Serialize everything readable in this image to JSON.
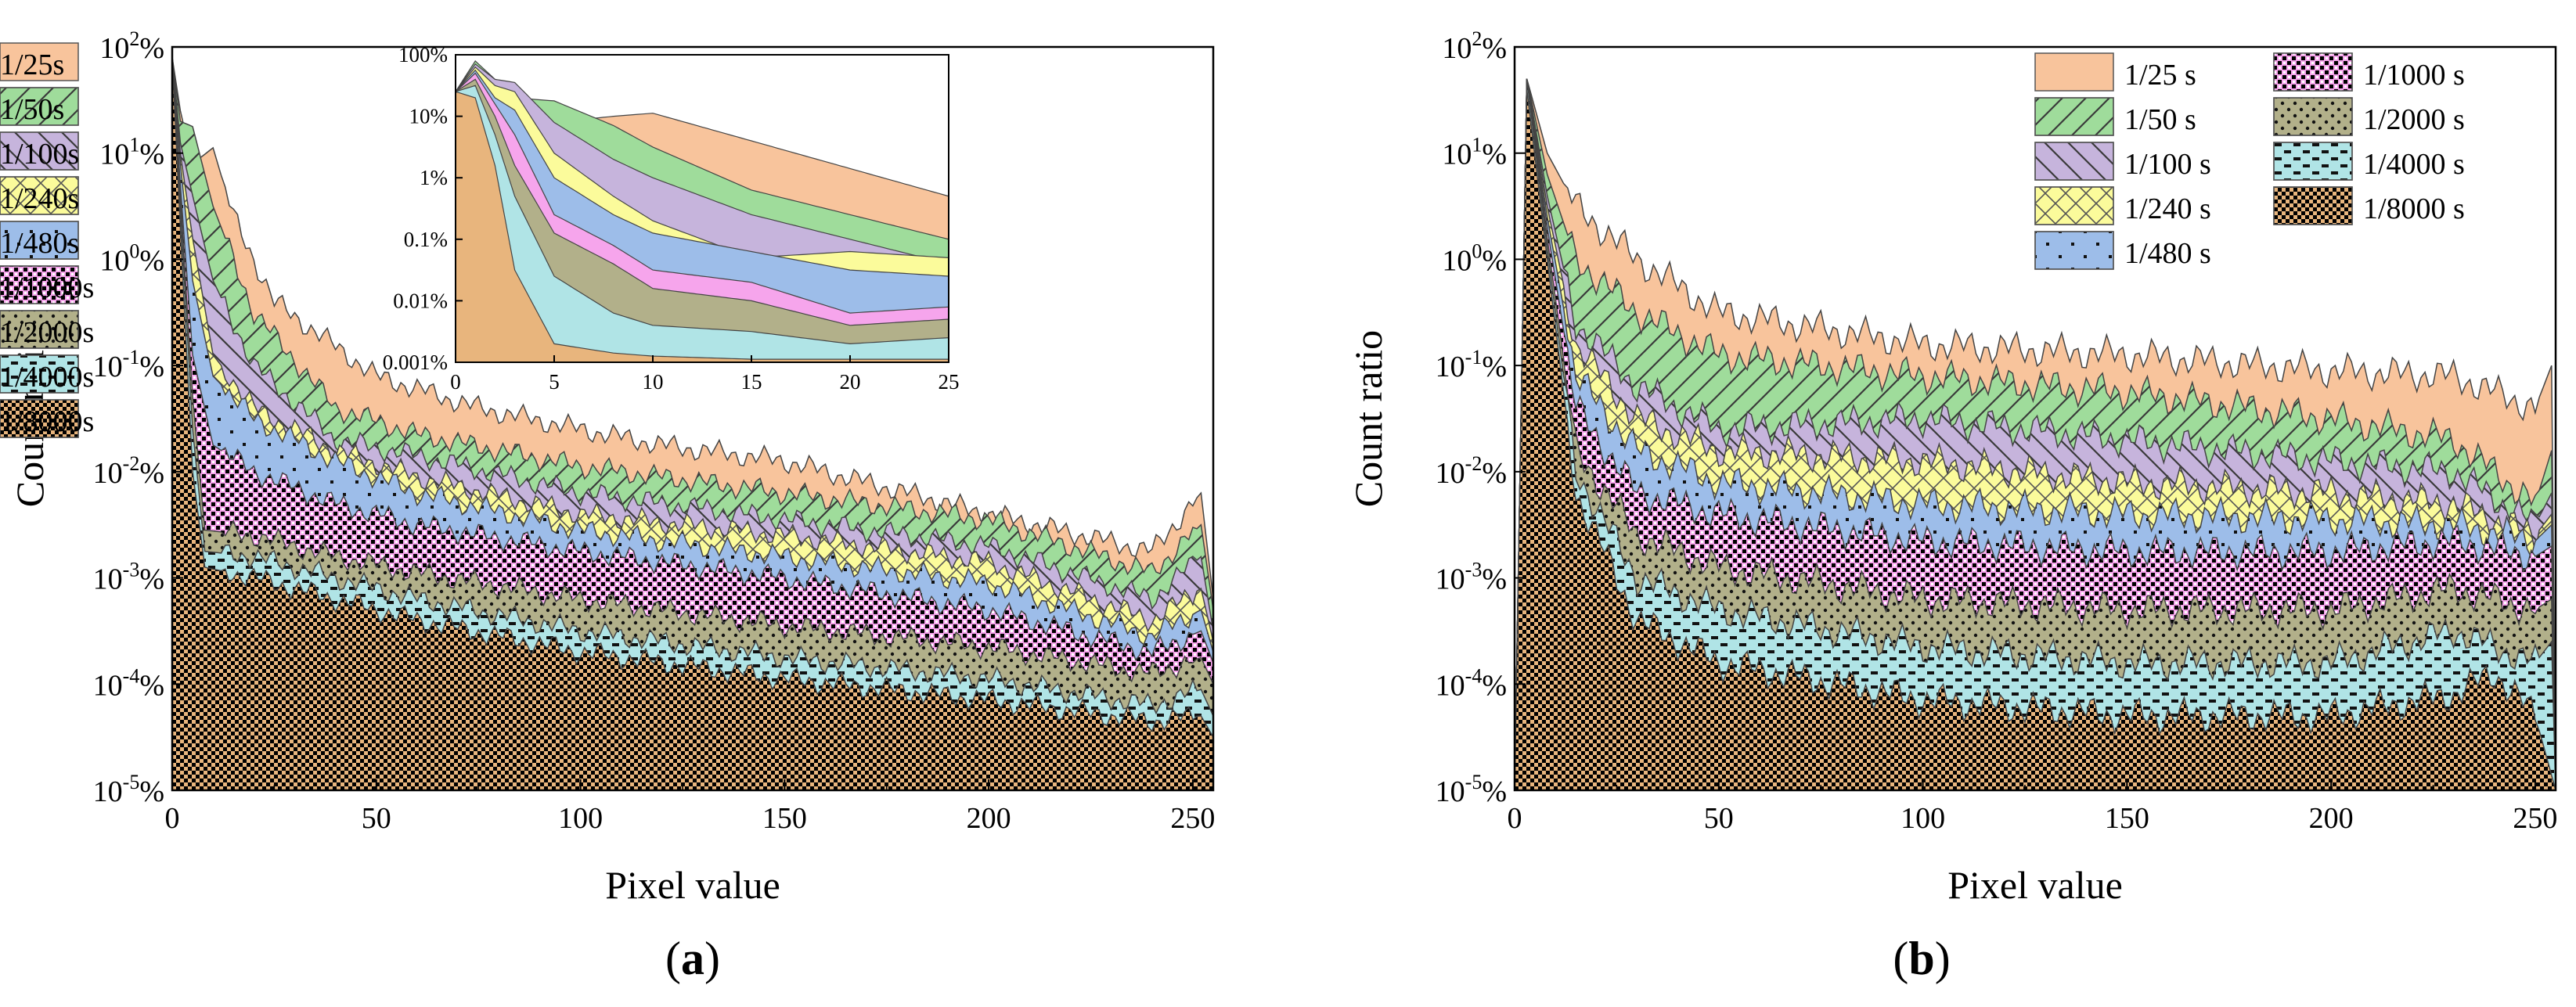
{
  "figure": {
    "panel_labels": [
      "a",
      "b"
    ]
  },
  "colors": {
    "1/25s": "#f8c49c",
    "1/50s": "#9fdc9b",
    "1/100s": "#c6b4dc",
    "1/240s": "#fbfb9b",
    "1/480s": "#9dbde9",
    "1/1000s": "#f6a5ec",
    "1/2000s": "#b2b08a",
    "1/4000s": "#b0e4e6",
    "1/8000s": "#e8b57d"
  },
  "chart_data": [
    {
      "type": "area",
      "panel": "a",
      "title": "",
      "xlabel": "Pixel value",
      "ylabel": "Count ratio",
      "xlim": [
        0,
        255
      ],
      "ylim_log10": [
        -5,
        2
      ],
      "xticks": [
        "0",
        "50",
        "100",
        "150",
        "200",
        "250"
      ],
      "yticks": [
        {
          "base": "10",
          "exp": "-5"
        },
        {
          "base": "10",
          "exp": "-4"
        },
        {
          "base": "10",
          "exp": "-3"
        },
        {
          "base": "10",
          "exp": "-2"
        },
        {
          "base": "10",
          "exp": "-1"
        },
        {
          "base": "10",
          "exp": "0"
        },
        {
          "base": "10",
          "exp": "1"
        },
        {
          "base": "10",
          "exp": "2"
        }
      ],
      "ytick_unit": "%",
      "legend": [
        "1/25s",
        "1/50s",
        "1/100s",
        "1/240s",
        "1/480s",
        "1/1000s",
        "1/2000s",
        "1/4000s",
        "1/8000s"
      ],
      "legend_position": "top-right",
      "series": [
        {
          "name": "1/25s",
          "x": [
            0,
            2,
            5,
            10,
            15,
            25,
            50,
            75,
            100,
            120,
            150,
            200,
            240,
            252,
            255
          ],
          "log10_percent": [
            1.9,
            1.4,
            0.9,
            1.05,
            0.4,
            -0.4,
            -1.1,
            -1.4,
            -1.6,
            -1.75,
            -1.9,
            -2.4,
            -2.75,
            -2.2,
            -3.2
          ]
        },
        {
          "name": "1/50s",
          "x": [
            0,
            2,
            5,
            10,
            20,
            40,
            60,
            100,
            150,
            200,
            240,
            252,
            255
          ],
          "log10_percent": [
            1.9,
            1.3,
            1.25,
            0.5,
            -0.5,
            -1.4,
            -1.65,
            -1.95,
            -2.2,
            -2.45,
            -2.95,
            -2.5,
            -3.3
          ]
        },
        {
          "name": "1/100s",
          "x": [
            0,
            2,
            5,
            10,
            20,
            40,
            60,
            100,
            150,
            200,
            240,
            252,
            255
          ],
          "log10_percent": [
            1.9,
            1.1,
            0.6,
            -0.2,
            -1.0,
            -1.7,
            -1.85,
            -2.2,
            -2.45,
            -2.7,
            -3.2,
            -2.8,
            -3.5
          ]
        },
        {
          "name": "1/240s",
          "x": [
            0,
            2,
            5,
            10,
            20,
            40,
            60,
            100,
            150,
            200,
            240,
            252,
            255
          ],
          "log10_percent": [
            1.9,
            1.0,
            0.2,
            -0.9,
            -1.4,
            -1.8,
            -2.05,
            -2.4,
            -2.6,
            -2.85,
            -3.4,
            -3.1,
            -3.6
          ]
        },
        {
          "name": "1/480s",
          "x": [
            0,
            2,
            5,
            10,
            20,
            40,
            60,
            100,
            150,
            200,
            240,
            252,
            255
          ],
          "log10_percent": [
            1.9,
            0.9,
            -0.2,
            -1.1,
            -1.5,
            -1.9,
            -2.2,
            -2.55,
            -2.8,
            -3.05,
            -3.55,
            -3.3,
            -3.7
          ]
        },
        {
          "name": "1/1000s",
          "x": [
            0,
            2,
            5,
            10,
            20,
            40,
            60,
            100,
            150,
            200,
            240,
            252,
            255
          ],
          "log10_percent": [
            1.9,
            0.7,
            -0.9,
            -1.75,
            -2.0,
            -2.3,
            -2.5,
            -2.75,
            -3.0,
            -3.3,
            -3.7,
            -3.5,
            -3.8
          ]
        },
        {
          "name": "1/2000s",
          "x": [
            0,
            2,
            5,
            8,
            20,
            40,
            60,
            100,
            150,
            200,
            240,
            252,
            255
          ],
          "log10_percent": [
            1.9,
            0.6,
            -1.3,
            -2.55,
            -2.6,
            -2.8,
            -2.95,
            -3.2,
            -3.45,
            -3.65,
            -3.9,
            -3.75,
            -4.0
          ]
        },
        {
          "name": "1/4000s",
          "x": [
            0,
            2,
            5,
            8,
            20,
            40,
            60,
            100,
            150,
            200,
            240,
            252,
            255
          ],
          "log10_percent": [
            1.9,
            0.5,
            -1.6,
            -2.75,
            -2.8,
            -3.0,
            -3.2,
            -3.5,
            -3.75,
            -3.95,
            -4.2,
            -4.05,
            -4.3
          ]
        },
        {
          "name": "1/8000s",
          "x": [
            0,
            2,
            5,
            8,
            20,
            40,
            60,
            100,
            150,
            200,
            240,
            252,
            255
          ],
          "log10_percent": [
            1.9,
            0.3,
            -2.0,
            -2.9,
            -3.0,
            -3.2,
            -3.4,
            -3.7,
            -3.95,
            -4.15,
            -4.35,
            -4.3,
            -4.5
          ]
        }
      ],
      "inset": {
        "xlim": [
          0,
          25
        ],
        "xticks": [
          "0",
          "5",
          "10",
          "15",
          "20",
          "25"
        ],
        "yticks": [
          "0.001%",
          "0.01%",
          "0.1%",
          "1%",
          "10%",
          "100%"
        ],
        "ylim_log10": [
          -3,
          2
        ],
        "series": [
          {
            "name": "1/25s",
            "x": [
              0,
              1,
              2,
              3,
              5,
              8,
              10,
              15,
              20,
              25
            ],
            "log10_percent": [
              1.4,
              1.85,
              1.55,
              1.0,
              0.9,
              1.0,
              1.05,
              0.6,
              0.15,
              -0.3
            ]
          },
          {
            "name": "1/50s",
            "x": [
              0,
              1,
              2,
              3,
              5,
              8,
              10,
              15,
              20,
              25
            ],
            "log10_percent": [
              1.4,
              1.9,
              1.6,
              1.3,
              1.25,
              0.85,
              0.5,
              -0.2,
              -0.6,
              -1.0
            ]
          },
          {
            "name": "1/100s",
            "x": [
              0,
              1,
              2,
              3,
              5,
              8,
              10,
              15,
              20,
              25
            ],
            "log10_percent": [
              1.4,
              1.85,
              1.6,
              1.55,
              0.9,
              0.3,
              0.0,
              -0.6,
              -1.0,
              -1.4
            ]
          },
          {
            "name": "1/240s",
            "x": [
              0,
              1,
              2,
              3,
              5,
              8,
              10,
              15,
              20,
              25
            ],
            "log10_percent": [
              1.4,
              1.8,
              1.5,
              1.4,
              0.4,
              -0.3,
              -0.7,
              -1.3,
              -1.2,
              -1.3
            ]
          },
          {
            "name": "1/480s",
            "x": [
              0,
              1,
              2,
              3,
              5,
              8,
              10,
              15,
              20,
              25
            ],
            "log10_percent": [
              1.4,
              1.75,
              1.3,
              1.1,
              0.0,
              -0.6,
              -0.9,
              -1.2,
              -1.5,
              -1.6
            ]
          },
          {
            "name": "1/1000s",
            "x": [
              0,
              1,
              2,
              3,
              5,
              8,
              10,
              15,
              20,
              25
            ],
            "log10_percent": [
              1.4,
              1.7,
              1.2,
              0.7,
              -0.6,
              -1.1,
              -1.5,
              -1.7,
              -2.2,
              -2.1
            ]
          },
          {
            "name": "1/2000s",
            "x": [
              0,
              1,
              2,
              3,
              5,
              8,
              10,
              15,
              20,
              25
            ],
            "log10_percent": [
              1.4,
              1.6,
              1.0,
              0.2,
              -0.9,
              -1.4,
              -1.8,
              -2.0,
              -2.4,
              -2.3
            ]
          },
          {
            "name": "1/4000s",
            "x": [
              0,
              1,
              2,
              3,
              5,
              8,
              10,
              15,
              20,
              25
            ],
            "log10_percent": [
              1.4,
              1.5,
              0.7,
              -0.3,
              -1.6,
              -2.2,
              -2.4,
              -2.5,
              -2.7,
              -2.6
            ]
          },
          {
            "name": "1/8000s",
            "x": [
              0,
              1,
              2,
              3,
              5,
              8,
              10,
              15,
              20,
              25
            ],
            "log10_percent": [
              1.4,
              1.3,
              0.2,
              -1.5,
              -2.7,
              -2.85,
              -2.9,
              -2.95,
              -2.95,
              -2.95
            ]
          }
        ]
      }
    },
    {
      "type": "area",
      "panel": "b",
      "title": "",
      "xlabel": "Pixel value",
      "ylabel": "Count ratio",
      "xlim": [
        0,
        255
      ],
      "ylim_log10": [
        -5,
        2
      ],
      "xticks": [
        "0",
        "50",
        "100",
        "150",
        "200",
        "250"
      ],
      "yticks": [
        {
          "base": "10",
          "exp": "-5"
        },
        {
          "base": "10",
          "exp": "-4"
        },
        {
          "base": "10",
          "exp": "-3"
        },
        {
          "base": "10",
          "exp": "-2"
        },
        {
          "base": "10",
          "exp": "-1"
        },
        {
          "base": "10",
          "exp": "0"
        },
        {
          "base": "10",
          "exp": "1"
        },
        {
          "base": "10",
          "exp": "2"
        }
      ],
      "ytick_unit": "%",
      "legend": [
        "1/25 s",
        "1/50 s",
        "1/100 s",
        "1/240 s",
        "1/480 s",
        "1/1000 s",
        "1/2000 s",
        "1/4000 s",
        "1/8000 s"
      ],
      "legend_position": "top-right",
      "series": [
        {
          "name": "1/25 s",
          "x": [
            0,
            3,
            8,
            15,
            30,
            50,
            100,
            150,
            200,
            230,
            250,
            254,
            255
          ],
          "log10_percent": [
            -5,
            1.7,
            1.0,
            0.5,
            0.0,
            -0.5,
            -0.8,
            -0.9,
            -1.05,
            -1.1,
            -1.4,
            -1.0,
            -5
          ]
        },
        {
          "name": "1/50 s",
          "x": [
            0,
            3,
            8,
            15,
            30,
            50,
            100,
            150,
            200,
            230,
            250,
            254,
            255
          ],
          "log10_percent": [
            -5,
            1.7,
            0.8,
            0.0,
            -0.5,
            -0.9,
            -1.1,
            -1.25,
            -1.5,
            -1.7,
            -2.3,
            -1.8,
            -5
          ]
        },
        {
          "name": "1/100 s",
          "x": [
            0,
            3,
            8,
            15,
            30,
            50,
            100,
            150,
            200,
            230,
            250,
            254,
            255
          ],
          "log10_percent": [
            -5,
            1.7,
            0.6,
            -0.6,
            -1.2,
            -1.6,
            -1.5,
            -1.7,
            -1.9,
            -2.0,
            -2.5,
            -2.2,
            -5
          ]
        },
        {
          "name": "1/240 s",
          "x": [
            0,
            3,
            8,
            15,
            30,
            50,
            100,
            150,
            200,
            230,
            250,
            254,
            255
          ],
          "log10_percent": [
            -5,
            1.7,
            0.5,
            -0.8,
            -1.5,
            -1.8,
            -1.9,
            -2.1,
            -2.2,
            -2.3,
            -2.6,
            -2.4,
            -5
          ]
        },
        {
          "name": "1/480 s",
          "x": [
            0,
            3,
            8,
            15,
            30,
            50,
            100,
            150,
            200,
            230,
            250,
            254,
            255
          ],
          "log10_percent": [
            -5,
            1.7,
            0.4,
            -1.1,
            -1.8,
            -2.1,
            -2.3,
            -2.4,
            -2.45,
            -2.5,
            -2.65,
            -2.5,
            -5
          ]
        },
        {
          "name": "1/1000 s",
          "x": [
            0,
            3,
            8,
            15,
            30,
            50,
            100,
            150,
            200,
            230,
            250,
            254,
            255
          ],
          "log10_percent": [
            -5,
            1.7,
            0.3,
            -1.4,
            -2.2,
            -2.4,
            -2.65,
            -2.75,
            -2.75,
            -2.65,
            -2.8,
            -2.7,
            -5
          ]
        },
        {
          "name": "1/2000 s",
          "x": [
            0,
            3,
            8,
            15,
            30,
            50,
            100,
            150,
            200,
            230,
            250,
            254,
            255
          ],
          "log10_percent": [
            -5,
            1.7,
            0.2,
            -1.8,
            -2.6,
            -2.9,
            -3.2,
            -3.3,
            -3.3,
            -3.1,
            -3.3,
            -3.2,
            -5
          ]
        },
        {
          "name": "1/4000 s",
          "x": [
            0,
            3,
            8,
            15,
            30,
            50,
            100,
            150,
            200,
            230,
            250,
            254,
            255
          ],
          "log10_percent": [
            -5,
            1.7,
            0.1,
            -2.0,
            -3.0,
            -3.3,
            -3.65,
            -3.8,
            -3.8,
            -3.5,
            -3.8,
            -3.6,
            -5
          ]
        },
        {
          "name": "1/8000 s",
          "x": [
            0,
            3,
            8,
            15,
            30,
            50,
            100,
            150,
            200,
            230,
            240,
            250,
            255
          ],
          "log10_percent": [
            -5,
            1.6,
            0.0,
            -2.2,
            -3.4,
            -3.8,
            -4.15,
            -4.3,
            -4.3,
            -4.1,
            -3.9,
            -4.3,
            -5
          ]
        }
      ]
    }
  ]
}
